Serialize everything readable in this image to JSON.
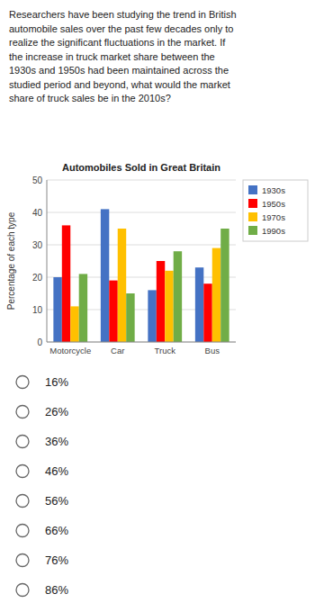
{
  "chart_data": {
    "type": "bar",
    "title": "Automobiles Sold in Great Britain",
    "ylabel": "Percentage of each type",
    "categories": [
      "Motorcycle",
      "Car",
      "Truck",
      "Bus"
    ],
    "series": [
      {
        "name": "1930s",
        "color": "#4472C4",
        "values": [
          20,
          41,
          16,
          23
        ]
      },
      {
        "name": "1950s",
        "color": "#FF0000",
        "values": [
          36,
          19,
          25,
          18
        ]
      },
      {
        "name": "1970s",
        "color": "#FFC000",
        "values": [
          11,
          35,
          22,
          29
        ]
      },
      {
        "name": "1990s",
        "color": "#70AD47",
        "values": [
          21,
          15,
          28,
          35
        ]
      }
    ],
    "ylim": [
      0,
      50
    ],
    "yticks": [
      0,
      10,
      20,
      30,
      40,
      50
    ],
    "grid": true,
    "legend": "right",
    "annotations": [
      "Researchers have been studying the trend in British\nautomobile sales over the past few decades only to\nrealize the significant fluctuations in the market. If\nthe increase in truck market share between the\n1930s and 1950s had been maintained across the\nstudied period and beyond, what would the market\nshare of truck sales be in the 2010s?",
      "16%",
      "26%",
      "36%",
      "46%",
      "56%",
      "66%",
      "76%",
      "86%"
    ]
  }
}
